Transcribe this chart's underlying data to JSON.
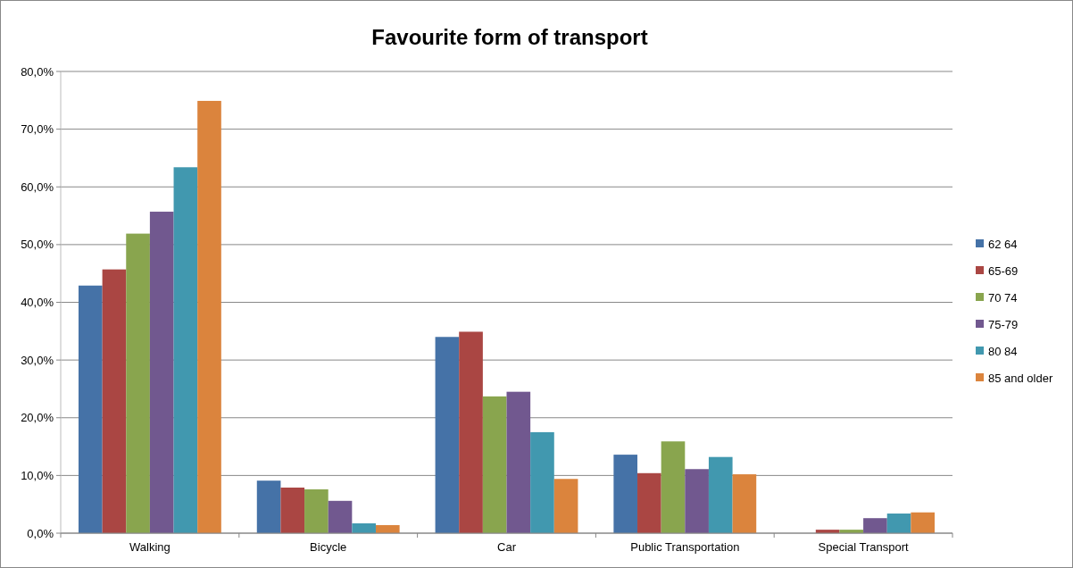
{
  "chart_data": {
    "type": "bar",
    "title": "Favourite form of transport",
    "categories": [
      "Walking",
      "Bicycle",
      "Car",
      "Public Transportation",
      "Special Transport"
    ],
    "series": [
      {
        "name": "62 64",
        "color": "#4572a7",
        "values": [
          42.9,
          9.1,
          34.0,
          13.6,
          0
        ]
      },
      {
        "name": "65-69",
        "color": "#aa4643",
        "values": [
          45.7,
          7.9,
          34.9,
          10.4,
          0.6
        ]
      },
      {
        "name": "70 74",
        "color": "#89a54e",
        "values": [
          51.9,
          7.6,
          23.7,
          15.9,
          0.6
        ]
      },
      {
        "name": "75-79",
        "color": "#71588f",
        "values": [
          55.7,
          5.6,
          24.5,
          11.1,
          2.6
        ]
      },
      {
        "name": "80 84",
        "color": "#4198af",
        "values": [
          63.4,
          1.7,
          17.5,
          13.2,
          3.4
        ]
      },
      {
        "name": "85 and older",
        "color": "#db843d",
        "values": [
          74.9,
          1.4,
          9.4,
          10.2,
          3.6
        ]
      }
    ],
    "ylim": [
      0,
      80
    ],
    "yticks": [
      {
        "value": 0,
        "label": "0,0%"
      },
      {
        "value": 10,
        "label": "10,0%"
      },
      {
        "value": 20,
        "label": "20,0%"
      },
      {
        "value": 30,
        "label": "30,0%"
      },
      {
        "value": 40,
        "label": "40,0%"
      },
      {
        "value": 50,
        "label": "50,0%"
      },
      {
        "value": 60,
        "label": "60,0%"
      },
      {
        "value": 70,
        "label": "70,0%"
      },
      {
        "value": 80,
        "label": "80,0%"
      }
    ],
    "grid": "y",
    "legend": "right"
  }
}
